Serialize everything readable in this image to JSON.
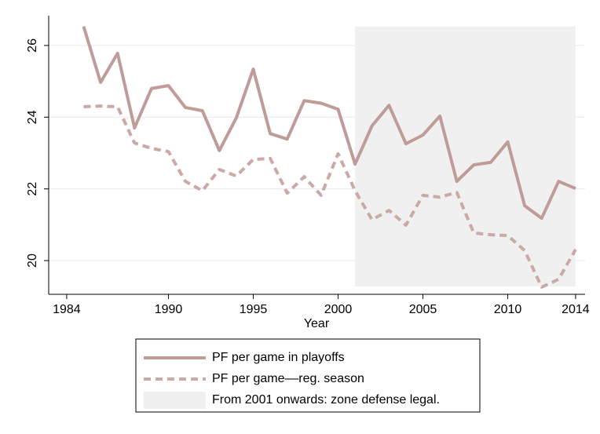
{
  "chart_data": {
    "type": "line",
    "x_label": "Year",
    "x": [
      1985,
      1986,
      1987,
      1988,
      1989,
      1990,
      1991,
      1992,
      1993,
      1994,
      1995,
      1996,
      1997,
      1998,
      1999,
      2000,
      2001,
      2002,
      2003,
      2004,
      2005,
      2006,
      2007,
      2008,
      2009,
      2010,
      2011,
      2012,
      2013,
      2014
    ],
    "series": [
      {
        "name": "PF per game in playoffs",
        "color": "#c09c99",
        "dash": "solid",
        "values": [
          26.53,
          24.97,
          25.78,
          23.7,
          24.8,
          24.88,
          24.27,
          24.18,
          23.07,
          23.98,
          25.34,
          23.54,
          23.39,
          24.46,
          24.39,
          24.22,
          22.69,
          23.76,
          24.33,
          23.26,
          23.5,
          24.03,
          22.21,
          22.67,
          22.74,
          23.31,
          21.53,
          21.18,
          22.21,
          22.01
        ]
      },
      {
        "name": "PF per game––reg. season",
        "color": "#c9aaa7",
        "dash": "dashed",
        "values": [
          24.29,
          24.31,
          24.29,
          23.28,
          23.13,
          23.04,
          22.21,
          21.95,
          22.54,
          22.36,
          22.82,
          22.85,
          21.88,
          22.34,
          21.82,
          22.98,
          21.95,
          21.14,
          21.4,
          20.99,
          21.82,
          21.77,
          21.9,
          20.77,
          20.72,
          20.7,
          20.28,
          19.26,
          19.48,
          20.31
        ]
      }
    ],
    "shaded_region": {
      "name": "From 2001 onwards: zone defense legal.",
      "color": "#f0f0f0",
      "x": [
        2001,
        2014
      ],
      "y": [
        19.28,
        26.53
      ]
    },
    "xlim": [
      1982.94,
      2014.56
    ],
    "xticks": [
      1984,
      1990,
      1995,
      2000,
      2005,
      2010,
      2014
    ],
    "ylim": [
      19.06,
      26.83
    ],
    "yticks": [
      20,
      22,
      24,
      26
    ],
    "grid": true
  }
}
